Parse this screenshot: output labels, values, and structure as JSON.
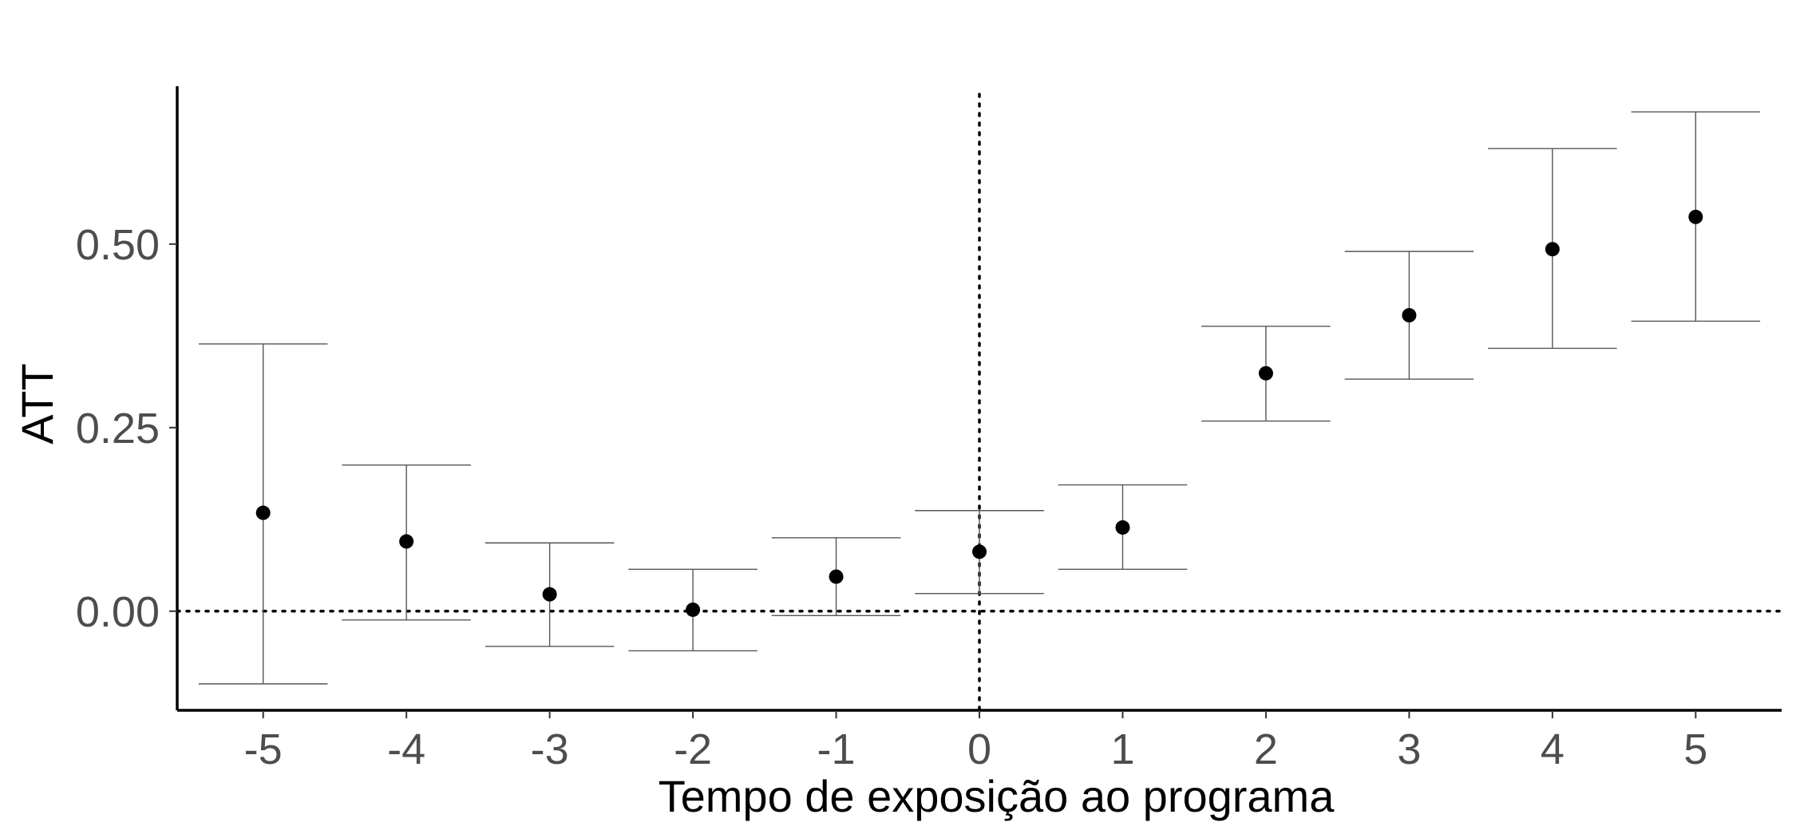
{
  "chart_data": {
    "type": "scatter",
    "title": "",
    "xlabel": "Tempo de exposição ao programa",
    "ylabel": "ATT",
    "x_ticks": [
      "-5",
      "-4",
      "-3",
      "-2",
      "-1",
      "0",
      "1",
      "2",
      "3",
      "4",
      "5"
    ],
    "y_ticks": [
      "0.00",
      "0.25",
      "0.50"
    ],
    "xlim": [
      -5.6,
      5.6
    ],
    "ylim": [
      -0.135,
      0.715
    ],
    "grid": false,
    "legend": "none",
    "reference_lines": {
      "horizontal_y": 0,
      "vertical_x": 0,
      "style": "dotted"
    },
    "series": [
      {
        "x": [
          -5,
          -4,
          -3,
          -2,
          -1,
          0,
          1,
          2,
          3,
          4,
          5
        ],
        "y": [
          0.134,
          0.095,
          0.023,
          0.002,
          0.047,
          0.081,
          0.114,
          0.324,
          0.403,
          0.493,
          0.537
        ],
        "ci_low": [
          -0.099,
          -0.012,
          -0.048,
          -0.054,
          -0.006,
          0.024,
          0.057,
          0.259,
          0.316,
          0.358,
          0.395
        ],
        "ci_high": [
          0.364,
          0.199,
          0.093,
          0.057,
          0.1,
          0.137,
          0.172,
          0.388,
          0.49,
          0.63,
          0.68
        ]
      }
    ],
    "colors": {
      "point": "#000000",
      "errorbar": "#555555",
      "axis": "#000000",
      "tick_text": "#4d4d4d"
    }
  }
}
